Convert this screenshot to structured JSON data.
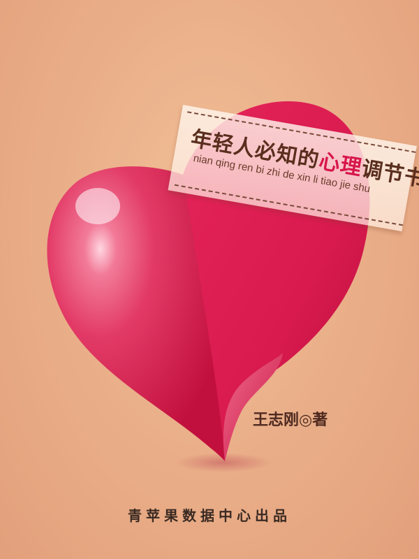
{
  "book": {
    "title_before": "年轻人必知的",
    "title_highlight": "心理",
    "title_after": "调节书",
    "pinyin": "nian qing ren bi zhi de xin li tiao jie shu",
    "author": "王志刚◎著",
    "publisher": "青苹果数据中心出品"
  },
  "colors": {
    "background": "#eab08a",
    "heart": "#d8154c",
    "highlight": "#d8154c",
    "title_text": "#5a2e1e"
  }
}
